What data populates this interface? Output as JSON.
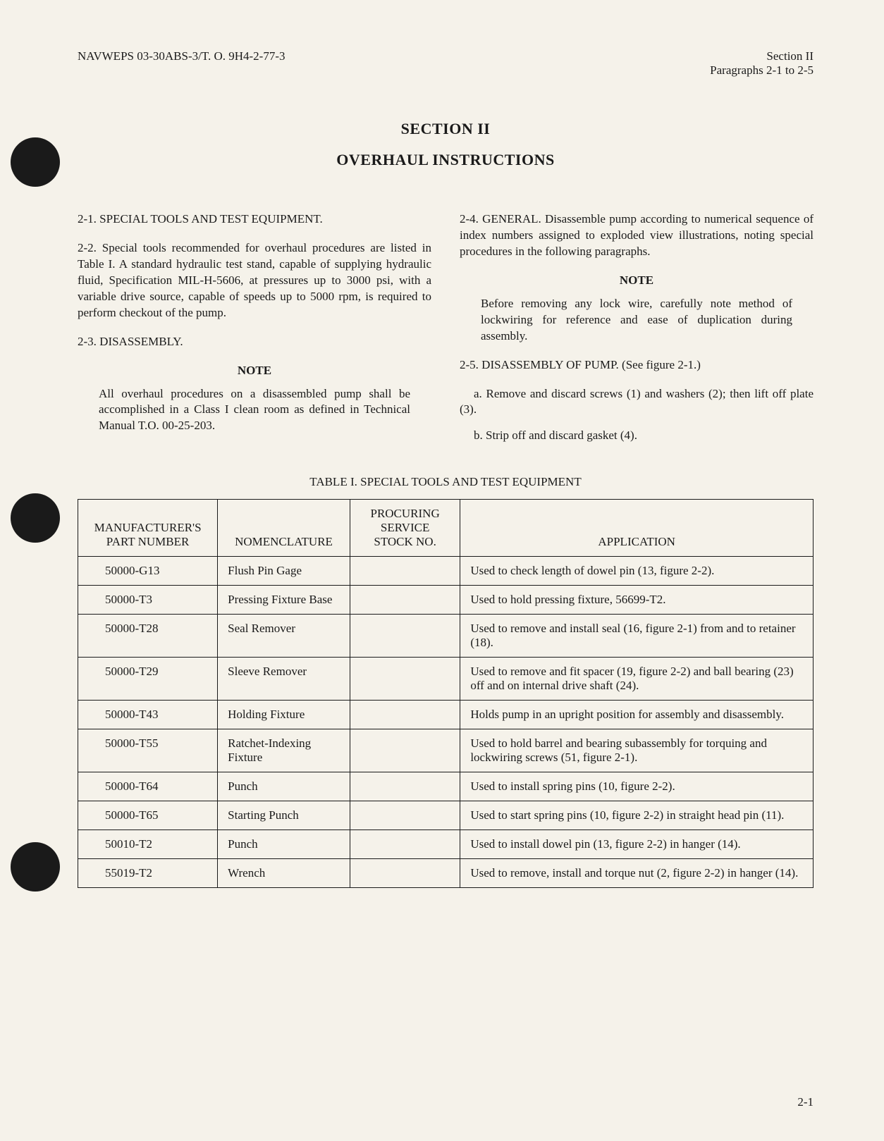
{
  "header": {
    "left": "NAVWEPS 03-30ABS-3/T. O. 9H4-2-77-3",
    "right_line1": "Section II",
    "right_line2": "Paragraphs 2-1 to 2-5"
  },
  "titles": {
    "section": "SECTION II",
    "subtitle": "OVERHAUL INSTRUCTIONS"
  },
  "left_column": {
    "para_2_1": "2-1.  SPECIAL TOOLS AND TEST EQUIPMENT.",
    "para_2_2": "2-2.  Special tools recommended for overhaul procedures are listed in Table I.  A standard hydraulic test stand, capable of supplying hydraulic fluid, Specification MIL-H-5606, at pressures up to 3000 psi, with a variable drive source, capable of speeds up to 5000 rpm, is required to perform checkout of the pump.",
    "para_2_3": "2-3.  DISASSEMBLY.",
    "note_label": "NOTE",
    "note_body": "All overhaul procedures on a disassembled pump shall be accomplished in a Class I clean room as defined in Technical Manual T.O. 00-25-203."
  },
  "right_column": {
    "para_2_4": "2-4.  GENERAL.   Disassemble pump according to numerical sequence of index numbers assigned to exploded view illustrations, noting special procedures in the following paragraphs.",
    "note_label": "NOTE",
    "note_body": "Before removing any lock wire, carefully note method of lockwiring for reference and ease of duplication during assembly.",
    "para_2_5": "2-5.  DISASSEMBLY OF PUMP.  (See figure 2-1.)",
    "item_a": "a.   Remove and discard screws (1) and washers (2); then lift off plate (3).",
    "item_b": "b.   Strip off and discard gasket (4)."
  },
  "table": {
    "caption": "TABLE I.  SPECIAL TOOLS AND TEST EQUIPMENT",
    "headers": {
      "col1_line1": "MANUFACTURER'S",
      "col1_line2": "PART NUMBER",
      "col2": "NOMENCLATURE",
      "col3_line1": "PROCURING",
      "col3_line2": "SERVICE",
      "col3_line3": "STOCK NO.",
      "col4": "APPLICATION"
    },
    "rows": [
      {
        "part": "50000-G13",
        "nom": "Flush Pin Gage",
        "stock": "",
        "app": "Used to check length of dowel pin (13, figure 2-2)."
      },
      {
        "part": "50000-T3",
        "nom": "Pressing Fixture Base",
        "stock": "",
        "app": "Used to hold pressing fixture, 56699-T2."
      },
      {
        "part": "50000-T28",
        "nom": "Seal Remover",
        "stock": "",
        "app": "Used to remove and install seal (16, figure 2-1) from and to retainer (18)."
      },
      {
        "part": "50000-T29",
        "nom": "Sleeve Remover",
        "stock": "",
        "app": "Used to remove and fit spacer (19, figure 2-2) and ball bearing (23) off and on internal drive shaft (24)."
      },
      {
        "part": "50000-T43",
        "nom": "Holding Fixture",
        "stock": "",
        "app": "Holds pump in an upright position for assembly and disassembly."
      },
      {
        "part": "50000-T55",
        "nom": "Ratchet-Indexing Fixture",
        "stock": "",
        "app": "Used to hold barrel and bearing subassembly for torquing and lockwiring screws (51, figure 2-1)."
      },
      {
        "part": "50000-T64",
        "nom": "Punch",
        "stock": "",
        "app": "Used to install spring pins (10, figure 2-2)."
      },
      {
        "part": "50000-T65",
        "nom": "Starting Punch",
        "stock": "",
        "app": "Used to start spring pins (10, figure 2-2) in straight head pin (11)."
      },
      {
        "part": "50010-T2",
        "nom": "Punch",
        "stock": "",
        "app": "Used to install dowel pin (13, figure 2-2) in hanger (14)."
      },
      {
        "part": "55019-T2",
        "nom": "Wrench",
        "stock": "",
        "app": "Used to remove, install and torque nut (2, figure 2-2) in hanger (14)."
      }
    ]
  },
  "page_number": "2-1"
}
